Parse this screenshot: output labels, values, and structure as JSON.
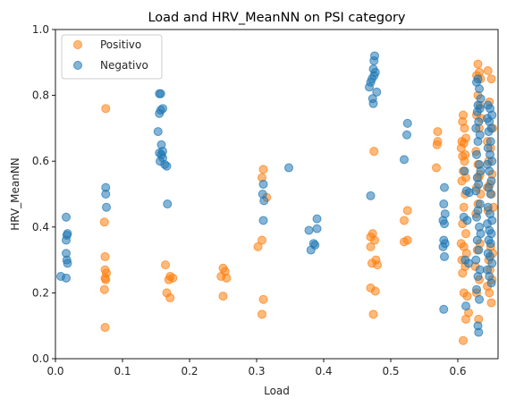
{
  "chart_data": {
    "type": "scatter",
    "title": "Load and HRV_MeanNN on PSI category",
    "xlabel": "Load",
    "ylabel": "HRV_MeanNN",
    "xlim": [
      0,
      0.66
    ],
    "ylim": [
      0,
      1.0
    ],
    "xticks": [
      "0.0",
      "0.1",
      "0.2",
      "0.3",
      "0.4",
      "0.5",
      "0.6"
    ],
    "yticks": [
      "0.0",
      "0.2",
      "0.4",
      "0.6",
      "0.8",
      "1.0"
    ],
    "grid": false,
    "legend_position": "top-left",
    "series": [
      {
        "name": "Positivo",
        "color": "#ff7f0e",
        "points": [
          [
            0.075,
            0.76
          ],
          [
            0.073,
            0.415
          ],
          [
            0.074,
            0.31
          ],
          [
            0.074,
            0.27
          ],
          [
            0.076,
            0.26
          ],
          [
            0.074,
            0.245
          ],
          [
            0.075,
            0.24
          ],
          [
            0.073,
            0.21
          ],
          [
            0.074,
            0.095
          ],
          [
            0.164,
            0.285
          ],
          [
            0.171,
            0.25
          ],
          [
            0.169,
            0.24
          ],
          [
            0.175,
            0.245
          ],
          [
            0.166,
            0.2
          ],
          [
            0.171,
            0.185
          ],
          [
            0.25,
            0.275
          ],
          [
            0.253,
            0.265
          ],
          [
            0.247,
            0.25
          ],
          [
            0.255,
            0.245
          ],
          [
            0.25,
            0.19
          ],
          [
            0.31,
            0.575
          ],
          [
            0.308,
            0.55
          ],
          [
            0.315,
            0.49
          ],
          [
            0.302,
            0.34
          ],
          [
            0.308,
            0.36
          ],
          [
            0.31,
            0.18
          ],
          [
            0.308,
            0.135
          ],
          [
            0.475,
            0.63
          ],
          [
            0.473,
            0.38
          ],
          [
            0.47,
            0.37
          ],
          [
            0.476,
            0.36
          ],
          [
            0.47,
            0.34
          ],
          [
            0.478,
            0.3
          ],
          [
            0.472,
            0.29
          ],
          [
            0.48,
            0.285
          ],
          [
            0.47,
            0.215
          ],
          [
            0.477,
            0.205
          ],
          [
            0.474,
            0.135
          ],
          [
            0.52,
            0.42
          ],
          [
            0.525,
            0.45
          ],
          [
            0.52,
            0.355
          ],
          [
            0.525,
            0.36
          ],
          [
            0.57,
            0.69
          ],
          [
            0.57,
            0.66
          ],
          [
            0.569,
            0.65
          ],
          [
            0.568,
            0.58
          ],
          [
            0.608,
            0.74
          ],
          [
            0.607,
            0.72
          ],
          [
            0.61,
            0.7
          ],
          [
            0.612,
            0.67
          ],
          [
            0.606,
            0.66
          ],
          [
            0.609,
            0.655
          ],
          [
            0.605,
            0.64
          ],
          [
            0.611,
            0.62
          ],
          [
            0.607,
            0.615
          ],
          [
            0.61,
            0.6
          ],
          [
            0.608,
            0.57
          ],
          [
            0.612,
            0.55
          ],
          [
            0.606,
            0.54
          ],
          [
            0.611,
            0.5
          ],
          [
            0.609,
            0.46
          ],
          [
            0.607,
            0.41
          ],
          [
            0.612,
            0.38
          ],
          [
            0.605,
            0.35
          ],
          [
            0.609,
            0.34
          ],
          [
            0.613,
            0.32
          ],
          [
            0.606,
            0.3
          ],
          [
            0.611,
            0.28
          ],
          [
            0.607,
            0.26
          ],
          [
            0.609,
            0.2
          ],
          [
            0.614,
            0.19
          ],
          [
            0.616,
            0.14
          ],
          [
            0.612,
            0.12
          ],
          [
            0.608,
            0.055
          ],
          [
            0.63,
            0.895
          ],
          [
            0.632,
            0.87
          ],
          [
            0.628,
            0.86
          ],
          [
            0.634,
            0.85
          ],
          [
            0.63,
            0.8
          ],
          [
            0.633,
            0.77
          ],
          [
            0.628,
            0.74
          ],
          [
            0.635,
            0.73
          ],
          [
            0.632,
            0.7
          ],
          [
            0.627,
            0.63
          ],
          [
            0.63,
            0.59
          ],
          [
            0.633,
            0.56
          ],
          [
            0.631,
            0.55
          ],
          [
            0.628,
            0.52
          ],
          [
            0.634,
            0.5
          ],
          [
            0.63,
            0.47
          ],
          [
            0.627,
            0.44
          ],
          [
            0.633,
            0.35
          ],
          [
            0.629,
            0.33
          ],
          [
            0.626,
            0.28
          ],
          [
            0.632,
            0.24
          ],
          [
            0.628,
            0.2
          ],
          [
            0.631,
            0.12
          ],
          [
            0.645,
            0.875
          ],
          [
            0.65,
            0.85
          ],
          [
            0.647,
            0.78
          ],
          [
            0.652,
            0.7
          ],
          [
            0.644,
            0.66
          ],
          [
            0.649,
            0.64
          ],
          [
            0.646,
            0.6
          ],
          [
            0.651,
            0.56
          ],
          [
            0.648,
            0.53
          ],
          [
            0.644,
            0.52
          ],
          [
            0.65,
            0.5
          ],
          [
            0.653,
            0.46
          ],
          [
            0.645,
            0.45
          ],
          [
            0.649,
            0.34
          ],
          [
            0.652,
            0.32
          ],
          [
            0.646,
            0.3
          ],
          [
            0.648,
            0.27
          ],
          [
            0.651,
            0.24
          ],
          [
            0.644,
            0.22
          ],
          [
            0.647,
            0.2
          ],
          [
            0.65,
            0.17
          ]
        ]
      },
      {
        "name": "Negativo",
        "color": "#1f77b4",
        "points": [
          [
            0.008,
            0.25
          ],
          [
            0.016,
            0.43
          ],
          [
            0.018,
            0.38
          ],
          [
            0.017,
            0.375
          ],
          [
            0.016,
            0.36
          ],
          [
            0.016,
            0.32
          ],
          [
            0.017,
            0.3
          ],
          [
            0.018,
            0.29
          ],
          [
            0.016,
            0.245
          ],
          [
            0.075,
            0.52
          ],
          [
            0.075,
            0.5
          ],
          [
            0.076,
            0.46
          ],
          [
            0.155,
            0.805
          ],
          [
            0.157,
            0.805
          ],
          [
            0.16,
            0.76
          ],
          [
            0.157,
            0.755
          ],
          [
            0.155,
            0.745
          ],
          [
            0.153,
            0.69
          ],
          [
            0.158,
            0.65
          ],
          [
            0.16,
            0.63
          ],
          [
            0.155,
            0.625
          ],
          [
            0.158,
            0.62
          ],
          [
            0.16,
            0.61
          ],
          [
            0.156,
            0.6
          ],
          [
            0.163,
            0.59
          ],
          [
            0.166,
            0.585
          ],
          [
            0.167,
            0.47
          ],
          [
            0.31,
            0.53
          ],
          [
            0.309,
            0.5
          ],
          [
            0.311,
            0.48
          ],
          [
            0.31,
            0.42
          ],
          [
            0.348,
            0.58
          ],
          [
            0.378,
            0.39
          ],
          [
            0.381,
            0.33
          ],
          [
            0.385,
            0.35
          ],
          [
            0.387,
            0.345
          ],
          [
            0.39,
            0.425
          ],
          [
            0.39,
            0.395
          ],
          [
            0.476,
            0.92
          ],
          [
            0.475,
            0.905
          ],
          [
            0.474,
            0.88
          ],
          [
            0.477,
            0.87
          ],
          [
            0.475,
            0.86
          ],
          [
            0.472,
            0.85
          ],
          [
            0.47,
            0.84
          ],
          [
            0.468,
            0.825
          ],
          [
            0.479,
            0.81
          ],
          [
            0.473,
            0.79
          ],
          [
            0.474,
            0.775
          ],
          [
            0.47,
            0.495
          ],
          [
            0.525,
            0.715
          ],
          [
            0.524,
            0.68
          ],
          [
            0.52,
            0.605
          ],
          [
            0.58,
            0.52
          ],
          [
            0.579,
            0.47
          ],
          [
            0.581,
            0.44
          ],
          [
            0.578,
            0.42
          ],
          [
            0.58,
            0.41
          ],
          [
            0.579,
            0.36
          ],
          [
            0.581,
            0.35
          ],
          [
            0.578,
            0.34
          ],
          [
            0.58,
            0.31
          ],
          [
            0.579,
            0.15
          ],
          [
            0.61,
            0.57
          ],
          [
            0.613,
            0.51
          ],
          [
            0.617,
            0.505
          ],
          [
            0.609,
            0.43
          ],
          [
            0.614,
            0.42
          ],
          [
            0.611,
            0.3
          ],
          [
            0.616,
            0.29
          ],
          [
            0.612,
            0.16
          ],
          [
            0.63,
            0.85
          ],
          [
            0.628,
            0.84
          ],
          [
            0.632,
            0.82
          ],
          [
            0.634,
            0.79
          ],
          [
            0.63,
            0.77
          ],
          [
            0.633,
            0.76
          ],
          [
            0.629,
            0.75
          ],
          [
            0.631,
            0.72
          ],
          [
            0.627,
            0.7
          ],
          [
            0.633,
            0.68
          ],
          [
            0.63,
            0.66
          ],
          [
            0.628,
            0.62
          ],
          [
            0.632,
            0.59
          ],
          [
            0.634,
            0.57
          ],
          [
            0.629,
            0.55
          ],
          [
            0.631,
            0.53
          ],
          [
            0.627,
            0.51
          ],
          [
            0.633,
            0.47
          ],
          [
            0.63,
            0.45
          ],
          [
            0.628,
            0.43
          ],
          [
            0.632,
            0.4
          ],
          [
            0.634,
            0.38
          ],
          [
            0.629,
            0.36
          ],
          [
            0.631,
            0.33
          ],
          [
            0.627,
            0.3
          ],
          [
            0.633,
            0.27
          ],
          [
            0.63,
            0.25
          ],
          [
            0.628,
            0.21
          ],
          [
            0.632,
            0.18
          ],
          [
            0.63,
            0.1
          ],
          [
            0.631,
            0.08
          ],
          [
            0.645,
            0.77
          ],
          [
            0.648,
            0.76
          ],
          [
            0.651,
            0.74
          ],
          [
            0.644,
            0.73
          ],
          [
            0.647,
            0.72
          ],
          [
            0.65,
            0.7
          ],
          [
            0.646,
            0.69
          ],
          [
            0.649,
            0.66
          ],
          [
            0.645,
            0.64
          ],
          [
            0.648,
            0.62
          ],
          [
            0.651,
            0.6
          ],
          [
            0.644,
            0.59
          ],
          [
            0.647,
            0.57
          ],
          [
            0.65,
            0.54
          ],
          [
            0.646,
            0.52
          ],
          [
            0.649,
            0.5
          ],
          [
            0.645,
            0.46
          ],
          [
            0.648,
            0.44
          ],
          [
            0.651,
            0.42
          ],
          [
            0.644,
            0.41
          ],
          [
            0.647,
            0.39
          ],
          [
            0.65,
            0.38
          ],
          [
            0.646,
            0.36
          ],
          [
            0.649,
            0.35
          ],
          [
            0.645,
            0.32
          ],
          [
            0.648,
            0.31
          ],
          [
            0.651,
            0.29
          ],
          [
            0.644,
            0.27
          ],
          [
            0.647,
            0.25
          ],
          [
            0.65,
            0.23
          ]
        ]
      }
    ]
  }
}
